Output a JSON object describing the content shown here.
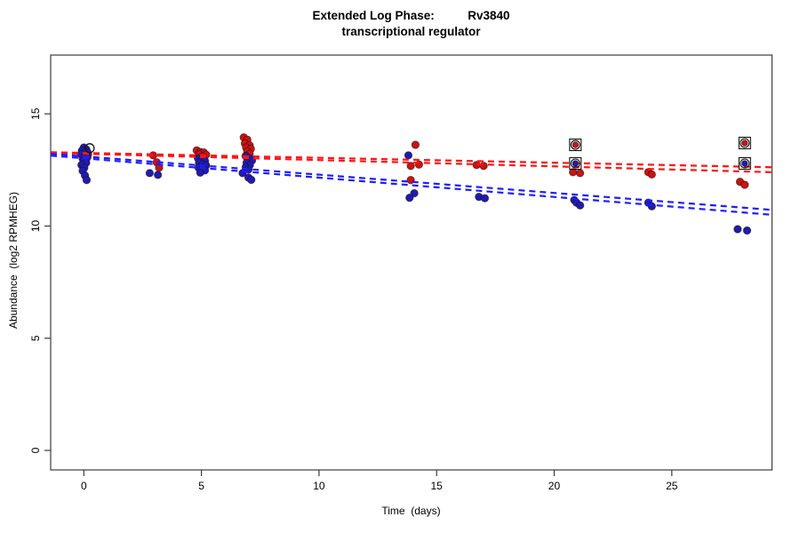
{
  "chart_data": {
    "type": "scatter",
    "title": "Extended Log Phase: Rv3840 transcriptional regulator",
    "title_line1": "Extended Log Phase:          Rv3840",
    "title_line2": "transcriptional regulator",
    "xlabel": "Time  (days)",
    "ylabel": "Abundance  (log2 RPMHEG)",
    "xlim": [
      -1.41,
      29.26
    ],
    "ylim": [
      -0.87,
      17.62
    ],
    "x_ticks": [
      0,
      5,
      10,
      15,
      20,
      25
    ],
    "y_ticks": [
      0,
      5,
      10,
      15
    ],
    "grid": false,
    "legend": "none",
    "colors": {
      "red_points": "#c81414",
      "blue_points": "#1c1cb4",
      "red_line": "#ff1414",
      "blue_line": "#1e1eff",
      "marker_outline": "#111111",
      "point_edge": "#2a0a0a",
      "axis": "#3c3c3c",
      "text": "#000000"
    },
    "series": [
      {
        "name": "red-group",
        "label": "condition red",
        "marker": "dot",
        "color_key": "red_points",
        "points": [
          [
            0.1,
            13.32
          ],
          [
            0.18,
            13.2
          ],
          [
            0.05,
            13.1
          ],
          [
            2.95,
            13.15
          ],
          [
            3.1,
            12.84
          ],
          [
            3.2,
            12.6
          ],
          [
            4.8,
            13.37
          ],
          [
            4.95,
            13.3
          ],
          [
            5.1,
            13.28
          ],
          [
            4.9,
            13.2
          ],
          [
            5.2,
            13.18
          ],
          [
            5.05,
            13.1
          ],
          [
            6.8,
            13.95
          ],
          [
            6.95,
            13.85
          ],
          [
            6.85,
            13.68
          ],
          [
            7.05,
            13.6
          ],
          [
            6.9,
            13.5
          ],
          [
            7.1,
            13.44
          ],
          [
            6.95,
            13.33
          ],
          [
            7.05,
            13.22
          ],
          [
            6.88,
            13.12
          ],
          [
            7.0,
            12.98
          ],
          [
            14.1,
            13.62
          ],
          [
            13.9,
            12.68
          ],
          [
            14.25,
            12.74
          ],
          [
            13.9,
            12.05
          ],
          [
            16.7,
            12.72
          ],
          [
            17.0,
            12.68
          ],
          [
            20.8,
            12.4
          ],
          [
            21.1,
            12.36
          ],
          [
            24.0,
            12.4
          ],
          [
            24.15,
            12.3
          ],
          [
            27.9,
            11.97
          ],
          [
            28.1,
            11.84
          ]
        ]
      },
      {
        "name": "blue-group",
        "label": "condition blue",
        "marker": "dot",
        "color_key": "blue_points",
        "points": [
          [
            0.0,
            13.5
          ],
          [
            0.1,
            13.42
          ],
          [
            -0.08,
            13.36
          ],
          [
            0.15,
            13.3
          ],
          [
            0.02,
            13.26
          ],
          [
            -0.12,
            13.2
          ],
          [
            0.08,
            13.14
          ],
          [
            0.15,
            13.06
          ],
          [
            -0.05,
            13.0
          ],
          [
            0.0,
            12.92
          ],
          [
            0.1,
            12.82
          ],
          [
            -0.1,
            12.72
          ],
          [
            0.02,
            12.6
          ],
          [
            -0.05,
            12.46
          ],
          [
            0.05,
            12.25
          ],
          [
            0.12,
            12.05
          ],
          [
            2.8,
            12.36
          ],
          [
            3.15,
            12.28
          ],
          [
            4.85,
            13.02
          ],
          [
            5.0,
            12.96
          ],
          [
            5.15,
            12.9
          ],
          [
            4.9,
            12.82
          ],
          [
            5.05,
            12.76
          ],
          [
            5.2,
            12.7
          ],
          [
            4.88,
            12.6
          ],
          [
            5.02,
            12.54
          ],
          [
            5.15,
            12.48
          ],
          [
            4.95,
            12.38
          ],
          [
            6.9,
            13.1
          ],
          [
            7.05,
            13.02
          ],
          [
            7.15,
            12.92
          ],
          [
            6.92,
            12.82
          ],
          [
            7.06,
            12.72
          ],
          [
            6.88,
            12.62
          ],
          [
            7.0,
            12.52
          ],
          [
            6.75,
            12.36
          ],
          [
            7.0,
            12.16
          ],
          [
            7.12,
            12.06
          ],
          [
            13.8,
            13.15
          ],
          [
            14.05,
            11.46
          ],
          [
            13.85,
            11.26
          ],
          [
            16.8,
            11.3
          ],
          [
            17.05,
            11.24
          ],
          [
            20.85,
            11.16
          ],
          [
            20.95,
            11.04
          ],
          [
            21.1,
            10.92
          ],
          [
            24.0,
            11.04
          ],
          [
            24.15,
            10.88
          ],
          [
            27.8,
            9.86
          ],
          [
            28.2,
            9.8
          ]
        ]
      },
      {
        "name": "red-flagged",
        "label": "flagged red (circle+square)",
        "marker": "dot-circle-square",
        "color_key": "red_points",
        "points": [
          [
            20.9,
            13.62
          ],
          [
            28.1,
            13.7
          ]
        ]
      },
      {
        "name": "blue-flagged",
        "label": "flagged blue (circle+square)",
        "marker": "dot-circle-square",
        "color_key": "blue_points",
        "points": [
          [
            20.9,
            12.79
          ],
          [
            28.1,
            12.79
          ]
        ]
      },
      {
        "name": "outlier-open-circle",
        "label": "open circle marker",
        "marker": "open-circle",
        "color_key": "marker_outline",
        "points": [
          [
            0.25,
            13.47
          ]
        ]
      }
    ],
    "trend_lines": [
      {
        "name": "red-fit-a",
        "color_key": "red_line",
        "style": "dashed",
        "x": [
          -1.41,
          29.26
        ],
        "y": [
          13.29,
          12.62
        ]
      },
      {
        "name": "red-fit-b",
        "color_key": "red_line",
        "style": "dashed",
        "x": [
          -1.41,
          29.26
        ],
        "y": [
          13.26,
          12.4
        ]
      },
      {
        "name": "blue-fit-a",
        "color_key": "blue_line",
        "style": "dashed",
        "x": [
          -1.41,
          29.26
        ],
        "y": [
          13.22,
          10.72
        ]
      },
      {
        "name": "blue-fit-b",
        "color_key": "blue_line",
        "style": "dashed",
        "x": [
          -1.41,
          29.26
        ],
        "y": [
          13.14,
          10.5
        ]
      }
    ]
  }
}
